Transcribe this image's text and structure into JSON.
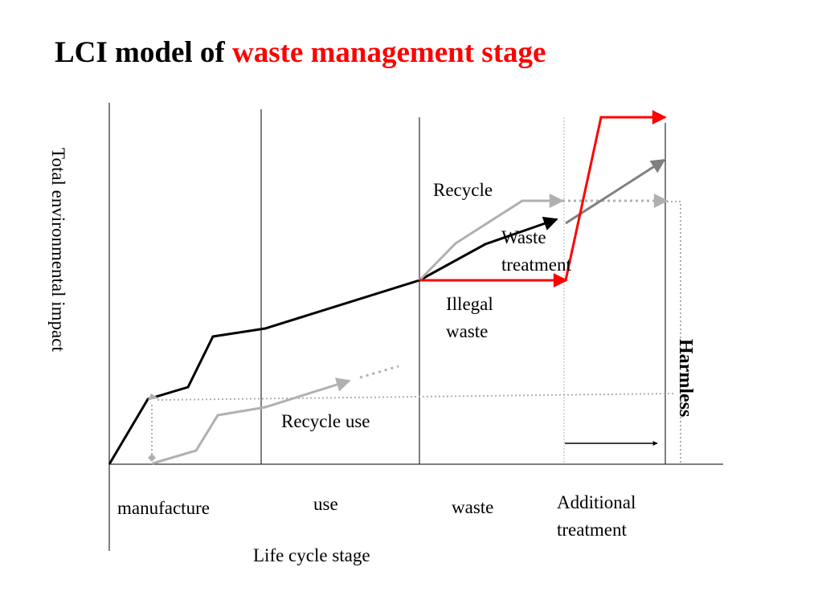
{
  "title": {
    "prefix": "LCI model of ",
    "highlight": "waste management stage"
  },
  "y_axis_label": "Total environmental impact",
  "x_axis_label": "Life cycle stage",
  "stages": [
    "manufacture",
    "use",
    "waste",
    "Additional treatment"
  ],
  "annotations": {
    "recycle": "Recycle",
    "waste_treatment": "Waste treatment",
    "illegal_waste": "Illegal waste",
    "recycle_use": "Recycle use",
    "harmless": "Harmless"
  },
  "colors": {
    "title_accent": "#ff0000",
    "main_path": "#000000",
    "illegal_path": "#ff0000",
    "recycle_path": "#b0b0b0",
    "treatment_path": "#808080"
  }
}
